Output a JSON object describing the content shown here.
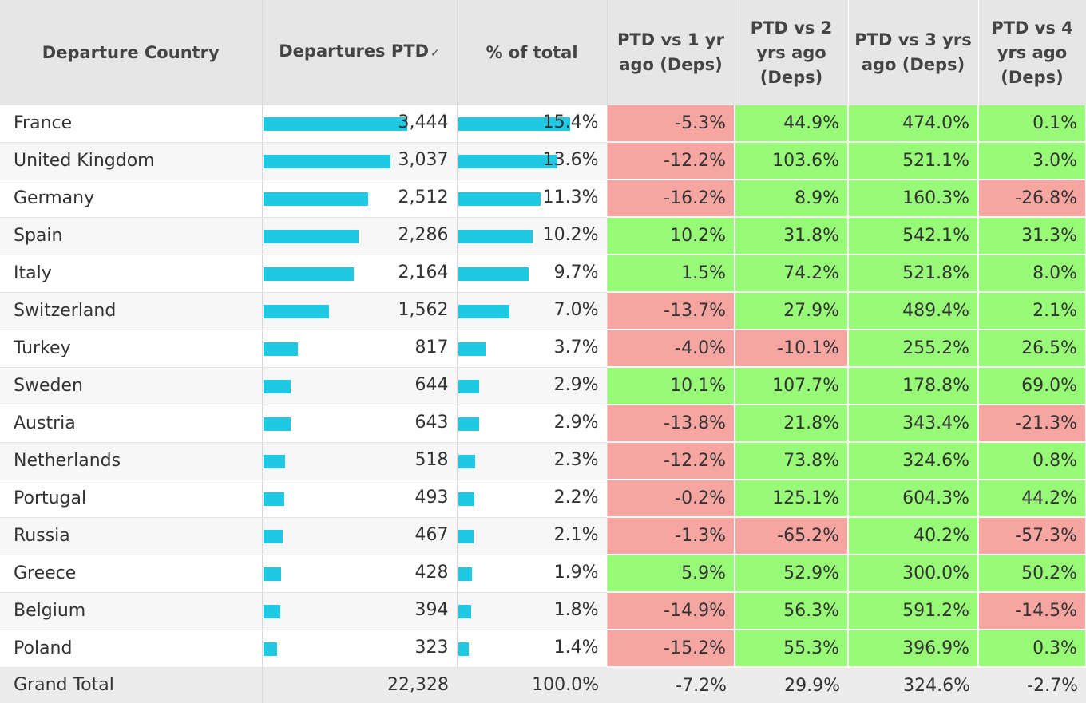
{
  "header": {
    "country": "Departure Country",
    "departures": "Departures PTD",
    "pct_total": "% of total",
    "vs1": "PTD vs 1 yr ago (Deps)",
    "vs2": "PTD vs 2 yrs ago (Deps)",
    "vs3": "PTD vs 3 yrs ago (Deps)",
    "vs4": "PTD vs 4 yrs ago (Deps)",
    "sort_icon": "✓"
  },
  "colors": {
    "bar": "#1fc8e3",
    "negative": "#f7a5a1",
    "positive": "#98fb78"
  },
  "rows": [
    {
      "country": "France",
      "departures": "3,444",
      "dep_value": 3444,
      "pct": "15.4%",
      "pct_value": 15.4,
      "vs1": "-5.3%",
      "vs2": "44.9%",
      "vs3": "474.0%",
      "vs4": "0.1%"
    },
    {
      "country": "United Kingdom",
      "departures": "3,037",
      "dep_value": 3037,
      "pct": "13.6%",
      "pct_value": 13.6,
      "vs1": "-12.2%",
      "vs2": "103.6%",
      "vs3": "521.1%",
      "vs4": "3.0%"
    },
    {
      "country": "Germany",
      "departures": "2,512",
      "dep_value": 2512,
      "pct": "11.3%",
      "pct_value": 11.3,
      "vs1": "-16.2%",
      "vs2": "8.9%",
      "vs3": "160.3%",
      "vs4": "-26.8%"
    },
    {
      "country": "Spain",
      "departures": "2,286",
      "dep_value": 2286,
      "pct": "10.2%",
      "pct_value": 10.2,
      "vs1": "10.2%",
      "vs2": "31.8%",
      "vs3": "542.1%",
      "vs4": "31.3%"
    },
    {
      "country": "Italy",
      "departures": "2,164",
      "dep_value": 2164,
      "pct": "9.7%",
      "pct_value": 9.7,
      "vs1": "1.5%",
      "vs2": "74.2%",
      "vs3": "521.8%",
      "vs4": "8.0%"
    },
    {
      "country": "Switzerland",
      "departures": "1,562",
      "dep_value": 1562,
      "pct": "7.0%",
      "pct_value": 7.0,
      "vs1": "-13.7%",
      "vs2": "27.9%",
      "vs3": "489.4%",
      "vs4": "2.1%"
    },
    {
      "country": "Turkey",
      "departures": "817",
      "dep_value": 817,
      "pct": "3.7%",
      "pct_value": 3.7,
      "vs1": "-4.0%",
      "vs2": "-10.1%",
      "vs3": "255.2%",
      "vs4": "26.5%"
    },
    {
      "country": "Sweden",
      "departures": "644",
      "dep_value": 644,
      "pct": "2.9%",
      "pct_value": 2.9,
      "vs1": "10.1%",
      "vs2": "107.7%",
      "vs3": "178.8%",
      "vs4": "69.0%"
    },
    {
      "country": "Austria",
      "departures": "643",
      "dep_value": 643,
      "pct": "2.9%",
      "pct_value": 2.9,
      "vs1": "-13.8%",
      "vs2": "21.8%",
      "vs3": "343.4%",
      "vs4": "-21.3%"
    },
    {
      "country": "Netherlands",
      "departures": "518",
      "dep_value": 518,
      "pct": "2.3%",
      "pct_value": 2.3,
      "vs1": "-12.2%",
      "vs2": "73.8%",
      "vs3": "324.6%",
      "vs4": "0.8%"
    },
    {
      "country": "Portugal",
      "departures": "493",
      "dep_value": 493,
      "pct": "2.2%",
      "pct_value": 2.2,
      "vs1": "-0.2%",
      "vs2": "125.1%",
      "vs3": "604.3%",
      "vs4": "44.2%"
    },
    {
      "country": "Russia",
      "departures": "467",
      "dep_value": 467,
      "pct": "2.1%",
      "pct_value": 2.1,
      "vs1": "-1.3%",
      "vs2": "-65.2%",
      "vs3": "40.2%",
      "vs4": "-57.3%"
    },
    {
      "country": "Greece",
      "departures": "428",
      "dep_value": 428,
      "pct": "1.9%",
      "pct_value": 1.9,
      "vs1": "5.9%",
      "vs2": "52.9%",
      "vs3": "300.0%",
      "vs4": "50.2%"
    },
    {
      "country": "Belgium",
      "departures": "394",
      "dep_value": 394,
      "pct": "1.8%",
      "pct_value": 1.8,
      "vs1": "-14.9%",
      "vs2": "56.3%",
      "vs3": "591.2%",
      "vs4": "-14.5%"
    },
    {
      "country": "Poland",
      "departures": "323",
      "dep_value": 323,
      "pct": "1.4%",
      "pct_value": 1.4,
      "vs1": "-15.2%",
      "vs2": "55.3%",
      "vs3": "396.9%",
      "vs4": "0.3%"
    }
  ],
  "total": {
    "label": "Grand Total",
    "departures": "22,328",
    "pct": "100.0%",
    "vs1": "-7.2%",
    "vs2": "29.9%",
    "vs3": "324.6%",
    "vs4": "-2.7%"
  }
}
